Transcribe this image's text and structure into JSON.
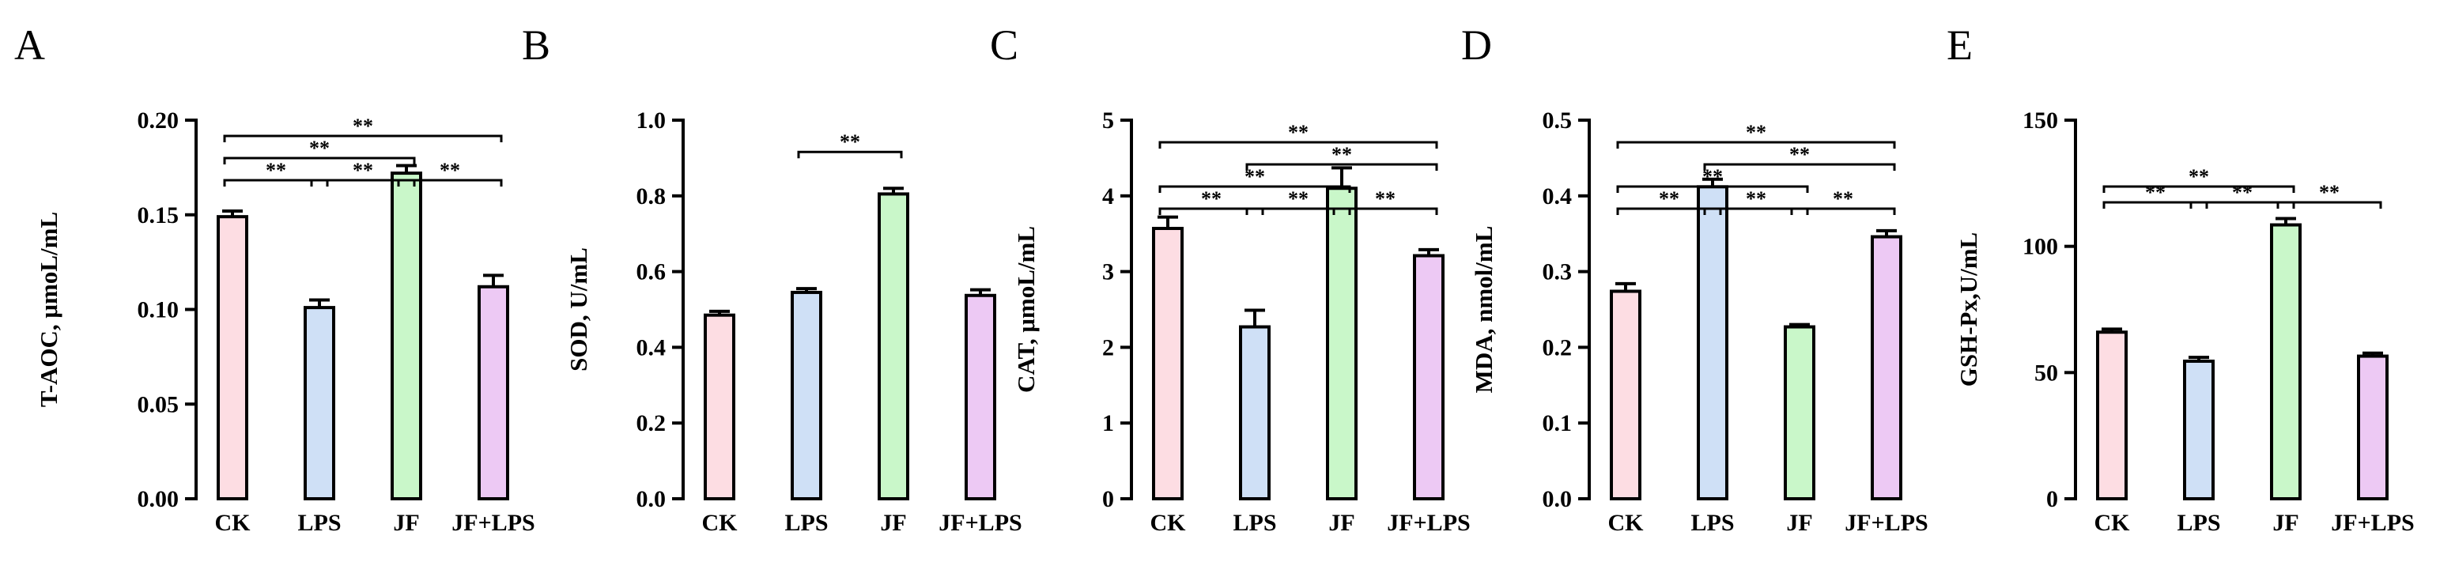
{
  "figure": {
    "colors": {
      "CK": "#fddde3",
      "LPS": "#cfe0f6",
      "JF": "#c9f7c9",
      "JF+LPS": "#edc9f4"
    },
    "categories": [
      "CK",
      "LPS",
      "JF",
      "JF+LPS"
    ]
  },
  "chart_data": [
    {
      "panel": "A",
      "type": "bar",
      "ylabel": "T-AOC, μmoL/mL",
      "categories": [
        "CK",
        "LPS",
        "JF",
        "JF+LPS"
      ],
      "values": [
        0.149,
        0.101,
        0.172,
        0.112
      ],
      "errors": [
        0.003,
        0.004,
        0.004,
        0.006
      ],
      "ylim": [
        0,
        0.2
      ],
      "yticks": [
        0.0,
        0.05,
        0.1,
        0.15,
        0.2
      ],
      "yticklabels": [
        "0.00",
        "0.05",
        "0.10",
        "0.15",
        "0.20"
      ],
      "significance": [
        {
          "from": 0,
          "to": 1,
          "label": "**",
          "level": 0
        },
        {
          "from": 1,
          "to": 2,
          "label": "**",
          "level": 0
        },
        {
          "from": 2,
          "to": 3,
          "label": "**",
          "level": 0
        },
        {
          "from": 0,
          "to": 2,
          "label": "**",
          "level": 1
        },
        {
          "from": 0,
          "to": 3,
          "label": "**",
          "level": 2
        }
      ]
    },
    {
      "panel": "B",
      "type": "bar",
      "ylabel": "SOD, U/mL",
      "categories": [
        "CK",
        "LPS",
        "JF",
        "JF+LPS"
      ],
      "values": [
        0.485,
        0.545,
        0.805,
        0.537
      ],
      "errors": [
        0.01,
        0.01,
        0.015,
        0.015
      ],
      "ylim": [
        0,
        1.0
      ],
      "yticks": [
        0.0,
        0.2,
        0.4,
        0.6,
        0.8,
        1.0
      ],
      "yticklabels": [
        "0.0",
        "0.2",
        "0.4",
        "0.6",
        "0.8",
        "1.0"
      ],
      "significance": [
        {
          "from": 1,
          "to": 2,
          "label": "**",
          "level": 0
        }
      ]
    },
    {
      "panel": "C",
      "type": "bar",
      "ylabel": "CAT, μmoL/mL",
      "categories": [
        "CK",
        "LPS",
        "JF",
        "JF+LPS"
      ],
      "values": [
        3.57,
        2.27,
        4.1,
        3.21
      ],
      "errors": [
        0.15,
        0.22,
        0.27,
        0.08
      ],
      "ylim": [
        0,
        5
      ],
      "yticks": [
        0,
        1,
        2,
        3,
        4,
        5
      ],
      "yticklabels": [
        "0",
        "1",
        "2",
        "3",
        "4",
        "5"
      ],
      "significance": [
        {
          "from": 0,
          "to": 1,
          "label": "**",
          "level": 0
        },
        {
          "from": 1,
          "to": 2,
          "label": "**",
          "level": 0
        },
        {
          "from": 2,
          "to": 3,
          "label": "**",
          "level": 0
        },
        {
          "from": 0,
          "to": 2,
          "label": "**",
          "level": 1
        },
        {
          "from": 1,
          "to": 3,
          "label": "**",
          "level": 2
        },
        {
          "from": 0,
          "to": 3,
          "label": "**",
          "level": 3
        }
      ]
    },
    {
      "panel": "D",
      "type": "bar",
      "ylabel": "MDA, nmol/mL",
      "categories": [
        "CK",
        "LPS",
        "JF",
        "JF+LPS"
      ],
      "values": [
        0.274,
        0.412,
        0.227,
        0.346
      ],
      "errors": [
        0.01,
        0.01,
        0.003,
        0.008
      ],
      "ylim": [
        0,
        0.5
      ],
      "yticks": [
        0.0,
        0.1,
        0.2,
        0.3,
        0.4,
        0.5
      ],
      "yticklabels": [
        "0.0",
        "0.1",
        "0.2",
        "0.3",
        "0.4",
        "0.5"
      ],
      "significance": [
        {
          "from": 0,
          "to": 1,
          "label": "**",
          "level": 0
        },
        {
          "from": 1,
          "to": 2,
          "label": "**",
          "level": 0
        },
        {
          "from": 2,
          "to": 3,
          "label": "**",
          "level": 0
        },
        {
          "from": 0,
          "to": 2,
          "label": "**",
          "level": 1
        },
        {
          "from": 1,
          "to": 3,
          "label": "**",
          "level": 2
        },
        {
          "from": 0,
          "to": 3,
          "label": "**",
          "level": 3
        }
      ]
    },
    {
      "panel": "E",
      "type": "bar",
      "ylabel": "GSH-Px,U/mL",
      "categories": [
        "CK",
        "LPS",
        "JF",
        "JF+LPS"
      ],
      "values": [
        66,
        54.5,
        108.5,
        56.5
      ],
      "errors": [
        1.2,
        1.5,
        2.5,
        1.2
      ],
      "ylim": [
        0,
        150
      ],
      "yticks": [
        0,
        50,
        100,
        150
      ],
      "yticklabels": [
        "0",
        "50",
        "100",
        "150"
      ],
      "significance": [
        {
          "from": 0,
          "to": 1,
          "label": "**",
          "level": 0
        },
        {
          "from": 1,
          "to": 2,
          "label": "**",
          "level": 0
        },
        {
          "from": 2,
          "to": 3,
          "label": "**",
          "level": 0
        },
        {
          "from": 0,
          "to": 2,
          "label": "**",
          "level": 1
        }
      ]
    }
  ]
}
